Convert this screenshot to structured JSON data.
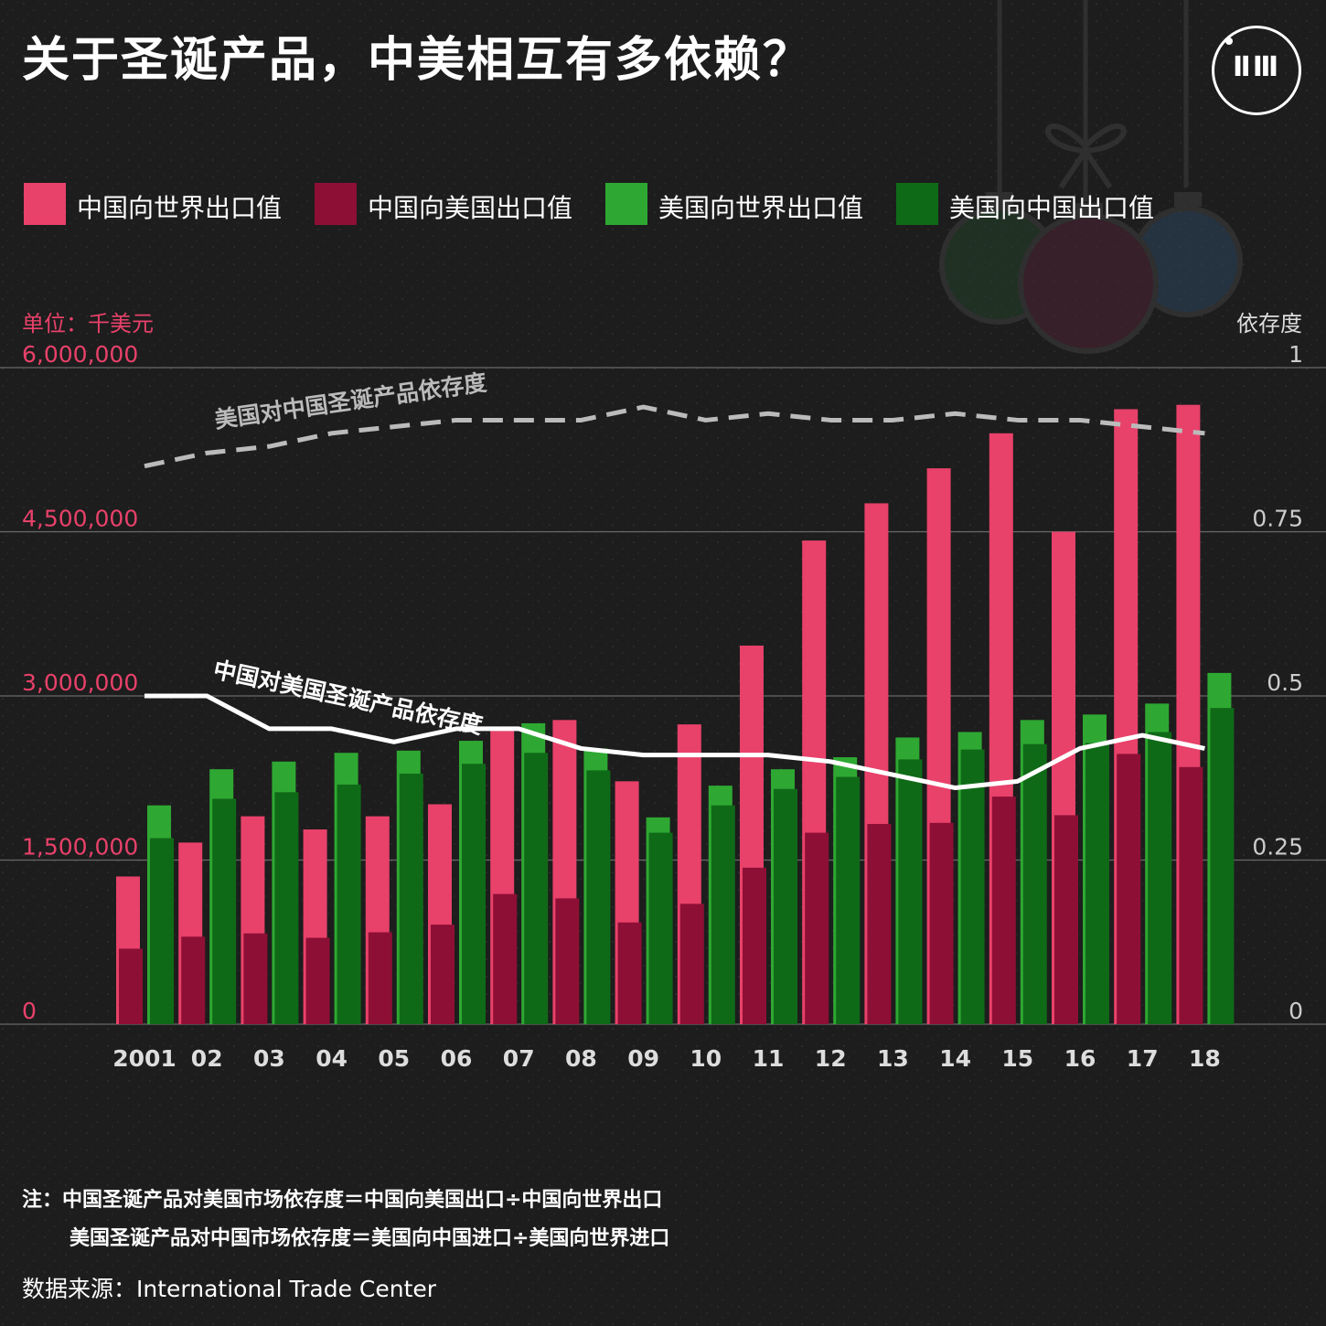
{
  "title": "关于圣诞产品，中美相互有多依赖？",
  "logo": {
    "text": "ⅡⅢ"
  },
  "legend": [
    {
      "label": "中国向世界出口值",
      "color": "#e8416a"
    },
    {
      "label": "中国向美国出口值",
      "color": "#8e0f35"
    },
    {
      "label": "美国向世界出口值",
      "color": "#2ea832"
    },
    {
      "label": "美国向中国出口值",
      "color": "#0f6a17"
    }
  ],
  "unit_left": "单位：千美元",
  "unit_right": "依存度",
  "notes": {
    "line1": "注：中国圣诞产品对美国市场依存度＝中国向美国出口÷中国向世界出口",
    "line2": "美国圣诞产品对中国市场依存度＝美国向中国进口÷美国向世界进口"
  },
  "source": "数据来源：International Trade Center",
  "chart_data": {
    "type": "bar",
    "categories": [
      "2001",
      "02",
      "03",
      "04",
      "05",
      "06",
      "07",
      "08",
      "09",
      "10",
      "11",
      "12",
      "13",
      "14",
      "15",
      "16",
      "17",
      "18"
    ],
    "y_left": {
      "ylim": [
        0,
        6000000
      ],
      "ticks": [
        "0",
        "1,500,000",
        "3,000,000",
        "4,500,000",
        "6,000,000"
      ],
      "tick_values": [
        0,
        1500000,
        3000000,
        4500000,
        6000000
      ]
    },
    "y_right": {
      "ylim": [
        0,
        1
      ],
      "ticks": [
        "0",
        "0.25",
        "0.5",
        "0.75",
        "1"
      ],
      "tick_values": [
        0,
        0.25,
        0.5,
        0.75,
        1
      ]
    },
    "series": [
      {
        "name": "中国向世界出口值",
        "color": "#e8416a",
        "axis": "left",
        "values": [
          1350000,
          1660000,
          1900000,
          1780000,
          1900000,
          2010000,
          2700000,
          2780000,
          2220000,
          2740000,
          3460000,
          4420000,
          4760000,
          5080000,
          5400000,
          4500000,
          5620000,
          5660000
        ]
      },
      {
        "name": "中国向美国出口值",
        "color": "#8e0f35",
        "axis": "left",
        "values": [
          690000,
          800000,
          830000,
          790000,
          840000,
          910000,
          1190000,
          1150000,
          930000,
          1100000,
          1430000,
          1750000,
          1830000,
          1840000,
          2080000,
          1910000,
          2470000,
          2350000
        ]
      },
      {
        "name": "美国向世界出口值",
        "color": "#2ea832",
        "axis": "left",
        "values": [
          2000000,
          2330000,
          2400000,
          2480000,
          2500000,
          2590000,
          2750000,
          2520000,
          1890000,
          2180000,
          2330000,
          2440000,
          2620000,
          2670000,
          2780000,
          2830000,
          2930000,
          3210000
        ]
      },
      {
        "name": "美国向中国出口值",
        "color": "#0f6a17",
        "axis": "left",
        "values": [
          1700000,
          2060000,
          2120000,
          2190000,
          2290000,
          2380000,
          2480000,
          2320000,
          1750000,
          2000000,
          2150000,
          2260000,
          2420000,
          2510000,
          2560000,
          2570000,
          2670000,
          2890000
        ]
      }
    ],
    "lines": [
      {
        "name": "美国对中国圣诞产品依存度",
        "color": "#bbbbbb",
        "style": "dashed",
        "axis": "right",
        "values": [
          0.85,
          0.87,
          0.88,
          0.9,
          0.91,
          0.92,
          0.92,
          0.92,
          0.94,
          0.92,
          0.93,
          0.92,
          0.92,
          0.93,
          0.92,
          0.92,
          0.91,
          0.9
        ]
      },
      {
        "name": "中国对美国圣诞产品依存度",
        "color": "#ffffff",
        "style": "solid",
        "axis": "right",
        "values": [
          0.5,
          0.5,
          0.45,
          0.45,
          0.43,
          0.45,
          0.45,
          0.42,
          0.41,
          0.41,
          0.41,
          0.4,
          0.38,
          0.36,
          0.37,
          0.42,
          0.44,
          0.42
        ]
      }
    ],
    "grid": true,
    "legend_position": "top"
  }
}
